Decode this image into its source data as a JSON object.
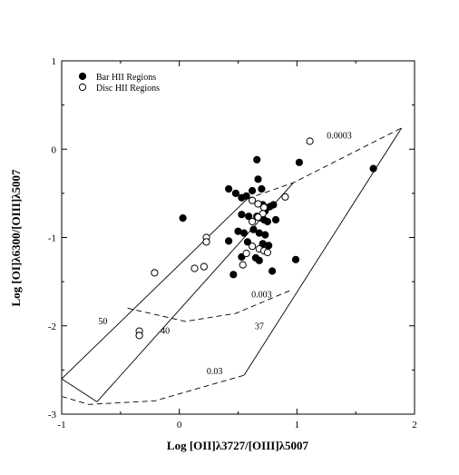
{
  "chart_data": {
    "type": "scatter",
    "title": "",
    "xlabel": "Log [OII]λ3727/[OIII]λ5007",
    "ylabel": "Log [OI]λ6300/[OIII]λ5007",
    "xlim": [
      -1,
      2
    ],
    "ylim": [
      -3,
      1
    ],
    "x_ticks": [
      "-1",
      "0",
      "1",
      "2"
    ],
    "y_ticks": [
      "-3",
      "-2",
      "-1",
      "0",
      "1"
    ],
    "grid": false,
    "legend_position": "top-left",
    "series": [
      {
        "name": "Bar HII Regions",
        "marker": "filled-circle",
        "color": "#000000",
        "points": [
          [
            0.03,
            -0.78
          ],
          [
            0.42,
            -0.45
          ],
          [
            0.48,
            -0.5
          ],
          [
            0.53,
            -0.55
          ],
          [
            0.57,
            -0.53
          ],
          [
            0.62,
            -0.47
          ],
          [
            0.66,
            -0.12
          ],
          [
            0.67,
            -0.34
          ],
          [
            0.7,
            -0.45
          ],
          [
            0.71,
            -0.63
          ],
          [
            0.73,
            -0.7
          ],
          [
            0.77,
            -0.65
          ],
          [
            0.8,
            -0.63
          ],
          [
            0.53,
            -0.74
          ],
          [
            0.59,
            -0.76
          ],
          [
            0.66,
            -0.76
          ],
          [
            0.7,
            -0.78
          ],
          [
            0.72,
            -0.8
          ],
          [
            0.75,
            -0.82
          ],
          [
            0.82,
            -0.8
          ],
          [
            0.5,
            -0.93
          ],
          [
            0.55,
            -0.95
          ],
          [
            0.63,
            -0.91
          ],
          [
            0.68,
            -0.95
          ],
          [
            0.73,
            -0.97
          ],
          [
            0.42,
            -1.04
          ],
          [
            0.58,
            -1.05
          ],
          [
            0.71,
            -1.07
          ],
          [
            0.76,
            -1.09
          ],
          [
            0.53,
            -1.22
          ],
          [
            0.65,
            -1.23
          ],
          [
            0.68,
            -1.26
          ],
          [
            0.46,
            -1.42
          ],
          [
            0.79,
            -1.38
          ],
          [
            0.99,
            -1.25
          ],
          [
            1.02,
            -0.15
          ],
          [
            1.65,
            -0.22
          ]
        ]
      },
      {
        "name": "Disc HII Regions",
        "marker": "open-circle",
        "color": "#000000",
        "points": [
          [
            1.11,
            0.09
          ],
          [
            0.9,
            -0.54
          ],
          [
            0.62,
            -0.58
          ],
          [
            0.67,
            -0.62
          ],
          [
            0.72,
            -0.66
          ],
          [
            0.71,
            -0.73
          ],
          [
            0.67,
            -0.77
          ],
          [
            0.62,
            -0.82
          ],
          [
            0.62,
            -1.1
          ],
          [
            0.68,
            -1.13
          ],
          [
            0.72,
            -1.15
          ],
          [
            0.75,
            -1.17
          ],
          [
            0.57,
            -1.18
          ],
          [
            0.54,
            -1.31
          ],
          [
            0.23,
            -1.0
          ],
          [
            0.23,
            -1.05
          ],
          [
            0.13,
            -1.35
          ],
          [
            0.21,
            -1.33
          ],
          [
            -0.21,
            -1.4
          ],
          [
            -0.34,
            -2.06
          ],
          [
            -0.34,
            -2.11
          ]
        ]
      }
    ],
    "model_grid": {
      "lines": [
        {
          "label": "50",
          "style": "solid",
          "points": [
            [
              -1.0,
              -2.6
            ],
            [
              0.58,
              -0.56
            ]
          ]
        },
        {
          "label": "40",
          "style": "solid",
          "points": [
            [
              -0.7,
              -2.86
            ],
            [
              0.97,
              -0.38
            ]
          ]
        },
        {
          "label": "37",
          "style": "solid",
          "points": [
            [
              0.55,
              -2.56
            ],
            [
              1.89,
              0.24
            ]
          ]
        },
        {
          "label": "",
          "style": "solid",
          "points": [
            [
              -1.0,
              -2.6
            ],
            [
              -0.7,
              -2.86
            ]
          ]
        },
        {
          "label": "0.0003",
          "style": "dashed",
          "points": [
            [
              0.58,
              -0.56
            ],
            [
              0.97,
              -0.38
            ],
            [
              1.89,
              0.24
            ]
          ]
        },
        {
          "label": "0.003",
          "style": "dashed",
          "points": [
            [
              -0.44,
              -1.8
            ],
            [
              0.05,
              -1.95
            ],
            [
              0.48,
              -1.86
            ],
            [
              0.94,
              -1.6
            ]
          ]
        },
        {
          "label": "0.03",
          "style": "dashed",
          "points": [
            [
              -1.0,
              -2.8
            ],
            [
              -0.77,
              -2.89
            ],
            [
              -0.21,
              -2.85
            ],
            [
              0.55,
              -2.56
            ]
          ]
        }
      ],
      "labels": [
        {
          "text": "50",
          "x": -0.65,
          "y": -1.98
        },
        {
          "text": "40",
          "x": -0.12,
          "y": -2.09
        },
        {
          "text": "37",
          "x": 0.68,
          "y": -2.04
        },
        {
          "text": "0.0003",
          "x": 1.36,
          "y": 0.12
        },
        {
          "text": "0.003",
          "x": 0.7,
          "y": -1.68
        },
        {
          "text": "0.03",
          "x": 0.3,
          "y": -2.55
        }
      ]
    }
  }
}
